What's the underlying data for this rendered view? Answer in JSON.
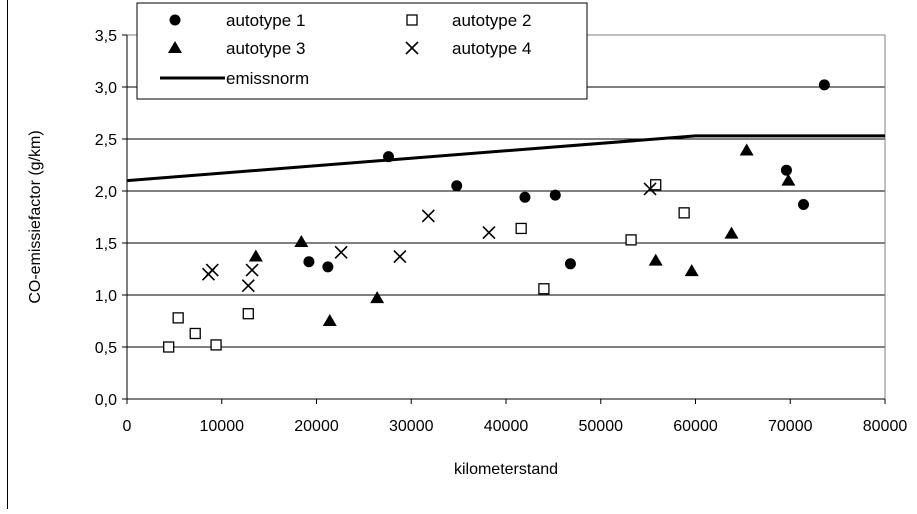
{
  "chart_data": {
    "type": "scatter",
    "title": "",
    "xlabel": "kilometerstand",
    "ylabel": "CO-emissiefactor (g/km)",
    "xlim": [
      0,
      80000
    ],
    "ylim": [
      0,
      3.5
    ],
    "x_ticks": [
      "0",
      "10000",
      "20000",
      "30000",
      "40000",
      "50000",
      "60000",
      "70000",
      "80000"
    ],
    "y_ticks": [
      "0,0",
      "0,5",
      "1,0",
      "1,5",
      "2,0",
      "2,5",
      "3,0",
      "3,5"
    ],
    "grid": "horizontal",
    "legend_position": "top-left",
    "series": [
      {
        "name": "autotype 1",
        "marker": "circle",
        "points": [
          [
            19200,
            1.32
          ],
          [
            21200,
            1.27
          ],
          [
            27600,
            2.33
          ],
          [
            34800,
            2.05
          ],
          [
            42000,
            1.94
          ],
          [
            45200,
            1.96
          ],
          [
            46800,
            1.3
          ],
          [
            69600,
            2.2
          ],
          [
            71400,
            1.87
          ],
          [
            73600,
            3.02
          ]
        ]
      },
      {
        "name": "autotype 2",
        "marker": "open-square",
        "points": [
          [
            4400,
            0.5
          ],
          [
            5400,
            0.78
          ],
          [
            7200,
            0.63
          ],
          [
            9400,
            0.52
          ],
          [
            12800,
            0.82
          ],
          [
            41600,
            1.64
          ],
          [
            44000,
            1.06
          ],
          [
            53200,
            1.53
          ],
          [
            55800,
            2.06
          ],
          [
            58800,
            1.79
          ]
        ]
      },
      {
        "name": "autotype 3",
        "marker": "triangle",
        "points": [
          [
            13600,
            1.37
          ],
          [
            18400,
            1.51
          ],
          [
            21400,
            0.75
          ],
          [
            26400,
            0.97
          ],
          [
            55800,
            1.33
          ],
          [
            59600,
            1.23
          ],
          [
            63800,
            1.59
          ],
          [
            65400,
            2.39
          ],
          [
            69800,
            2.1
          ]
        ]
      },
      {
        "name": "autotype 4",
        "marker": "x",
        "points": [
          [
            8600,
            1.2
          ],
          [
            9000,
            1.24
          ],
          [
            12800,
            1.09
          ],
          [
            13200,
            1.24
          ],
          [
            22600,
            1.41
          ],
          [
            28800,
            1.37
          ],
          [
            31800,
            1.76
          ],
          [
            38200,
            1.6
          ],
          [
            55200,
            2.02
          ]
        ]
      },
      {
        "name": "emissnorm",
        "marker": "line",
        "points": [
          [
            0,
            2.1
          ],
          [
            60000,
            2.53
          ],
          [
            80000,
            2.53
          ]
        ]
      }
    ]
  }
}
